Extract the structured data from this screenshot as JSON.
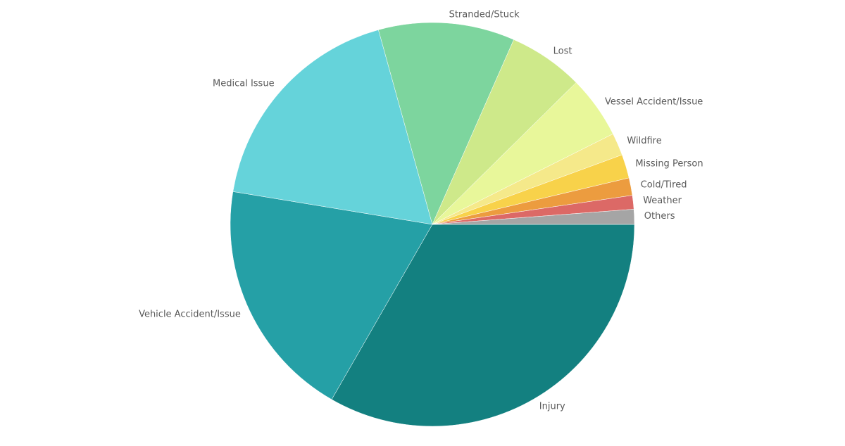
{
  "chart_data": {
    "type": "pie",
    "categories": [
      "Injury",
      "Vehicle Accident/Issue",
      "Medical Issue",
      "Stranded/Stuck",
      "Lost",
      "Vessel Accident/Issue",
      "Wildfire",
      "Missing Person",
      "Cold/Tired",
      "Weather",
      "Others"
    ],
    "values": [
      33.3,
      19.3,
      18.1,
      10.9,
      6.0,
      5.0,
      1.8,
      1.9,
      1.4,
      1.1,
      1.2
    ],
    "colors": [
      "#138080",
      "#25a0a6",
      "#65d3da",
      "#7dd59e",
      "#cee98a",
      "#e8f79a",
      "#f5e98a",
      "#f8d24a",
      "#ec9c3f",
      "#dc6966",
      "#a5a5a5"
    ]
  }
}
